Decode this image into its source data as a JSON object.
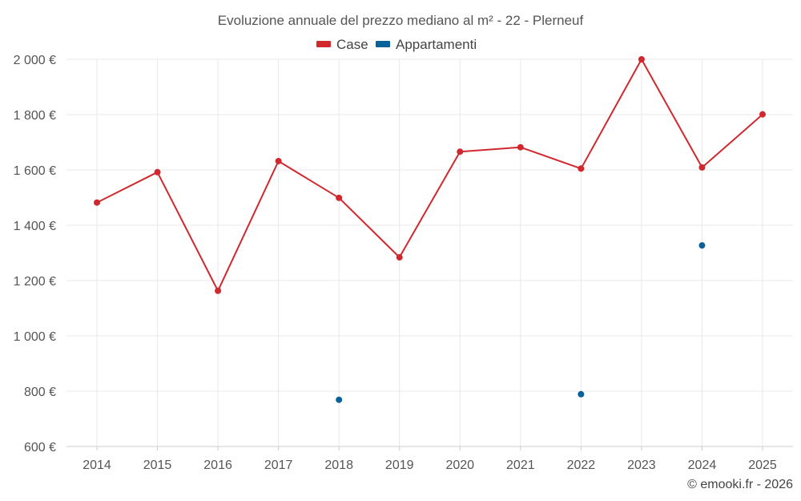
{
  "chart_data": {
    "type": "line",
    "title": "Evoluzione annuale del prezzo mediano al m² - 22 - Plerneuf",
    "x": [
      "2014",
      "2015",
      "2016",
      "2017",
      "2018",
      "2019",
      "2020",
      "2021",
      "2022",
      "2023",
      "2024",
      "2025"
    ],
    "xlabel": "",
    "ylabel": "",
    "ylim": [
      600,
      2000
    ],
    "yticks": [
      600,
      800,
      1000,
      1200,
      1400,
      1600,
      1800,
      2000
    ],
    "ytick_labels": [
      "600 €",
      "800 €",
      "1 000 €",
      "1 200 €",
      "1 400 €",
      "1 600 €",
      "1 800 €",
      "2 000 €"
    ],
    "grid": true,
    "legend_position": "top-center",
    "series": [
      {
        "name": "Case",
        "color": "#d0282e",
        "mode": "lines+markers",
        "values": [
          1482,
          1592,
          1163,
          1632,
          1499,
          1284,
          1666,
          1682,
          1605,
          2000,
          1609,
          1801
        ]
      },
      {
        "name": "Appartamenti",
        "color": "#0a6099",
        "mode": "markers",
        "values": [
          null,
          null,
          null,
          null,
          769,
          null,
          null,
          null,
          789,
          null,
          1327,
          null
        ]
      }
    ]
  },
  "credit": "© emooki.fr - 2026"
}
